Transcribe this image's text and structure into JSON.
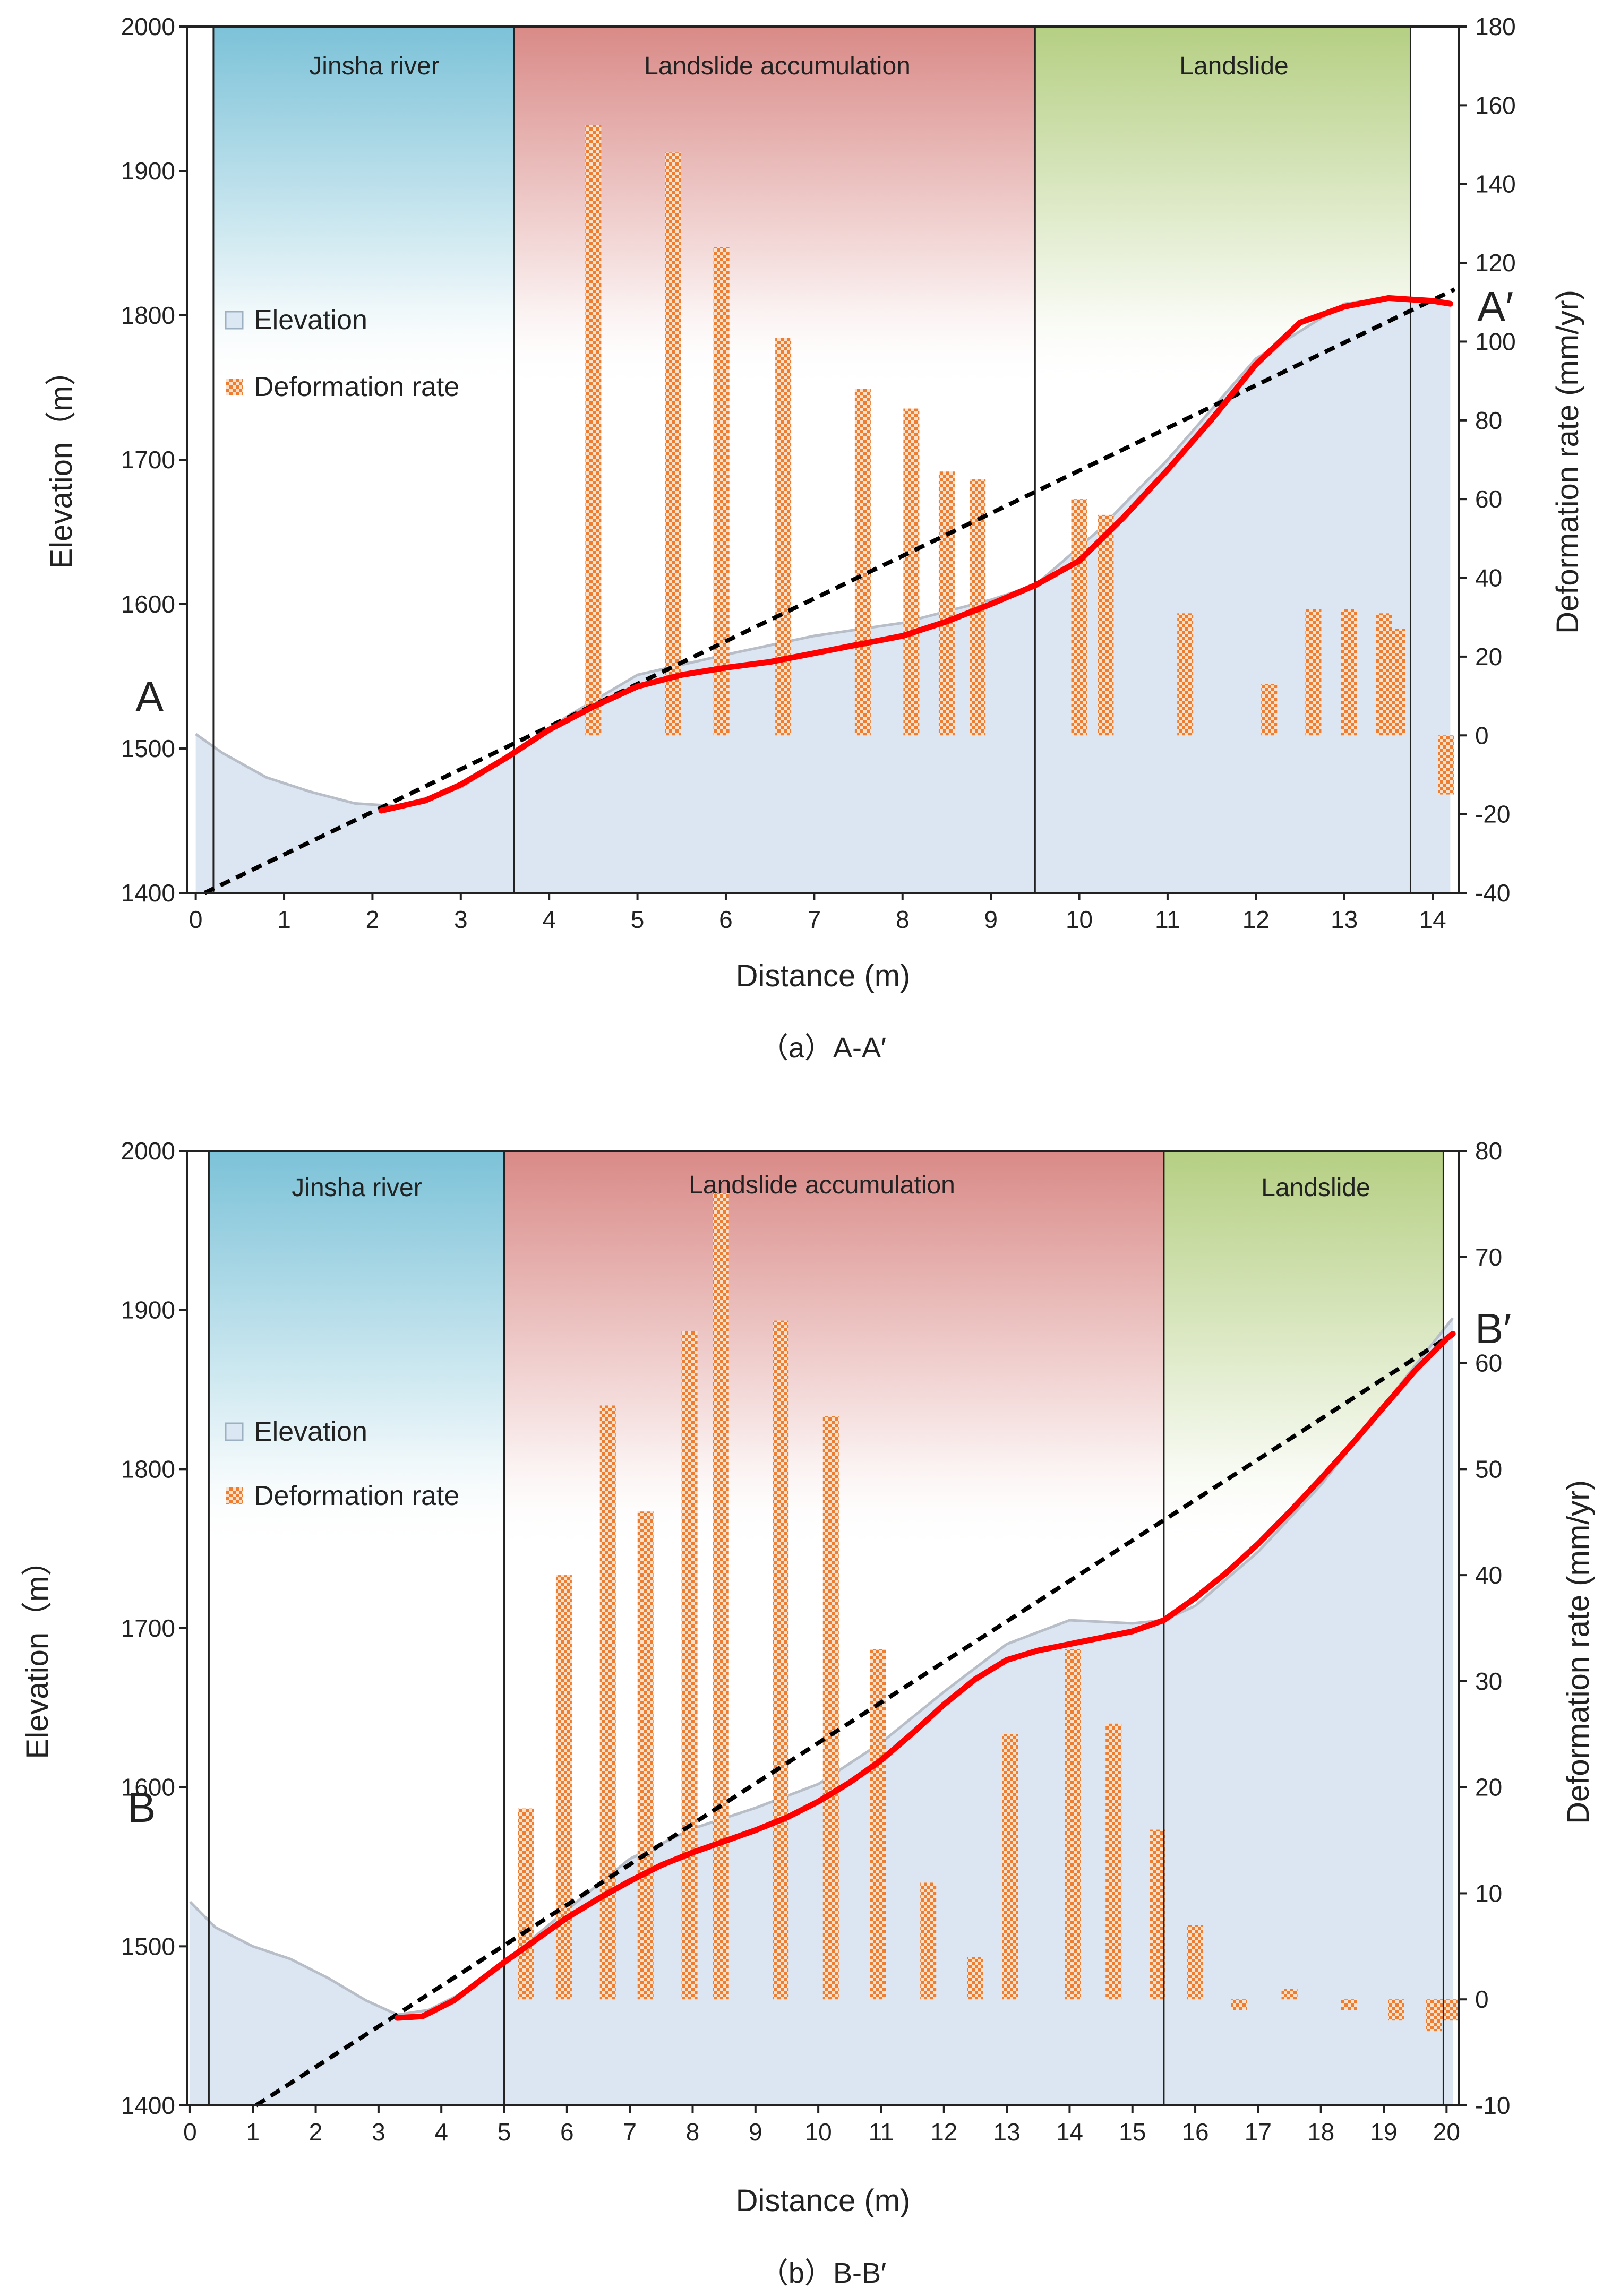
{
  "chart_data": [
    {
      "type": "profile",
      "caption": "（a）A-A′",
      "xlabel": "Distance (m)",
      "ylabel_left": "Elevation（m）",
      "ylabel_right": "Deformation rate (mm/yr)",
      "xlim": [
        -0.1,
        14.3
      ],
      "ylim_left": [
        1400,
        2000
      ],
      "ylim_right": [
        -40,
        180
      ],
      "x_ticks": [
        "0",
        "1",
        "2",
        "3",
        "4",
        "5",
        "6",
        "7",
        "8",
        "9",
        "10",
        "11",
        "12",
        "13",
        "14"
      ],
      "y_left_ticks": [
        "1400",
        "1500",
        "1600",
        "1700",
        "1800",
        "1900",
        "2000"
      ],
      "y_right_ticks": [
        "-40",
        "-20",
        "0",
        "20",
        "40",
        "60",
        "80",
        "100",
        "120",
        "140",
        "160",
        "180"
      ],
      "start_label": "A",
      "end_label": "A′",
      "zones": [
        {
          "name": "Jinsha river",
          "x0": 0.2,
          "x1": 3.6,
          "color": "#7cc2d8"
        },
        {
          "name": "Landslide accumulation",
          "x0": 3.6,
          "x1": 9.5,
          "color": "#d98a87"
        },
        {
          "name": "Landslide",
          "x0": 9.5,
          "x1": 13.75,
          "color": "#b5cf83"
        }
      ],
      "legend": [
        {
          "label": "Elevation",
          "kind": "area"
        },
        {
          "label": "Deformation rate",
          "kind": "bar"
        }
      ],
      "elevation": {
        "x": [
          0,
          0.3,
          0.8,
          1.3,
          1.8,
          2.3,
          3.0,
          3.6,
          4.2,
          5.0,
          6.0,
          7.0,
          8.0,
          9.0,
          9.5,
          10.2,
          11.0,
          12.0,
          13.0,
          13.5,
          14.0,
          14.2
        ],
        "y": [
          1510,
          1497,
          1480,
          1470,
          1462,
          1460,
          1473,
          1496,
          1522,
          1551,
          1565,
          1578,
          1587,
          1603,
          1613,
          1650,
          1700,
          1770,
          1808,
          1812,
          1810,
          1808
        ]
      },
      "trend_curve": {
        "x": [
          2.1,
          2.6,
          3.0,
          3.5,
          4.0,
          4.5,
          5.0,
          5.5,
          6.0,
          6.5,
          7.0,
          7.5,
          8.0,
          8.5,
          9.0,
          9.5,
          10.0,
          10.5,
          11.0,
          11.5,
          12.0,
          12.5,
          13.0,
          13.5,
          14.0,
          14.2
        ],
        "y": [
          1457,
          1464,
          1475,
          1493,
          1513,
          1529,
          1543,
          1551,
          1556,
          1560,
          1566,
          1572,
          1578,
          1588,
          1600,
          1613,
          1630,
          1660,
          1693,
          1728,
          1766,
          1795,
          1806,
          1812,
          1810,
          1808
        ]
      },
      "reference_line": {
        "x": [
          0.1,
          14.25
        ],
        "y": [
          1400,
          1818
        ]
      },
      "deformation_rate": {
        "x": [
          4.5,
          5.4,
          5.95,
          6.65,
          7.55,
          8.1,
          8.5,
          8.85,
          10.0,
          10.3,
          11.2,
          12.15,
          12.65,
          13.05,
          13.45,
          13.6,
          14.15
        ],
        "values": [
          155,
          148,
          124,
          101,
          88,
          83,
          67,
          65,
          60,
          56,
          31,
          13,
          32,
          32,
          31,
          27,
          -15
        ]
      }
    },
    {
      "type": "profile",
      "caption": "（b）B-B′",
      "xlabel": "Distance (m)",
      "ylabel_left": "Elevation（m）",
      "ylabel_right": "Deformation rate (mm/yr)",
      "xlim": [
        -0.05,
        20.2
      ],
      "ylim_left": [
        1400,
        2000
      ],
      "ylim_right": [
        -10,
        80
      ],
      "x_ticks": [
        "0",
        "1",
        "2",
        "3",
        "4",
        "5",
        "6",
        "7",
        "8",
        "9",
        "10",
        "11",
        "12",
        "13",
        "14",
        "15",
        "16",
        "17",
        "18",
        "19",
        "20"
      ],
      "y_left_ticks": [
        "1400",
        "1500",
        "1600",
        "1700",
        "1800",
        "1900",
        "2000"
      ],
      "y_right_ticks": [
        "-10",
        "0",
        "10",
        "20",
        "30",
        "40",
        "50",
        "60",
        "70",
        "80"
      ],
      "start_label": "B",
      "end_label": "B′",
      "zones": [
        {
          "name": "Jinsha river",
          "x0": 0.3,
          "x1": 5.0,
          "color": "#7cc2d8"
        },
        {
          "name": "Landslide accumulation",
          "x0": 5.0,
          "x1": 15.5,
          "color": "#d98a87"
        },
        {
          "name": "Landslide",
          "x0": 15.5,
          "x1": 19.95,
          "color": "#b5cf83"
        }
      ],
      "legend": [
        {
          "label": "Elevation",
          "kind": "area"
        },
        {
          "label": "Deformation rate",
          "kind": "bar"
        }
      ],
      "elevation": {
        "x": [
          0,
          0.4,
          1.0,
          1.6,
          2.2,
          2.8,
          3.3,
          3.8,
          4.3,
          5.0,
          6.0,
          7.0,
          8.0,
          9.0,
          10.0,
          11.0,
          12.0,
          13.0,
          14.0,
          15.0,
          15.5,
          16.0,
          17.0,
          18.0,
          19.0,
          20.0,
          20.1
        ],
        "y": [
          1528,
          1512,
          1500,
          1492,
          1480,
          1466,
          1457,
          1460,
          1470,
          1490,
          1523,
          1555,
          1574,
          1587,
          1602,
          1628,
          1660,
          1690,
          1705,
          1703,
          1705,
          1714,
          1748,
          1790,
          1840,
          1890,
          1895
        ]
      },
      "trend_curve": {
        "x": [
          3.3,
          3.7,
          4.2,
          4.6,
          5.0,
          5.5,
          6.0,
          6.5,
          7.0,
          7.5,
          8.0,
          8.5,
          9.0,
          9.5,
          10.0,
          10.5,
          11.0,
          11.5,
          12.0,
          12.5,
          13.0,
          13.5,
          14.0,
          14.5,
          15.0,
          15.5,
          16.0,
          16.5,
          17.0,
          17.5,
          18.0,
          18.5,
          19.0,
          19.5,
          20.0,
          20.1
        ],
        "y": [
          1455,
          1456,
          1466,
          1478,
          1490,
          1504,
          1518,
          1530,
          1541,
          1551,
          1559,
          1566,
          1573,
          1581,
          1591,
          1603,
          1617,
          1634,
          1652,
          1668,
          1680,
          1686,
          1690,
          1694,
          1698,
          1705,
          1719,
          1735,
          1753,
          1773,
          1794,
          1816,
          1839,
          1862,
          1882,
          1885
        ]
      },
      "reference_line": {
        "x": [
          1.05,
          20.1
        ],
        "y": [
          1400,
          1885
        ]
      },
      "deformation_rate": {
        "x": [
          5.35,
          5.95,
          6.65,
          7.25,
          7.95,
          8.45,
          9.4,
          10.2,
          10.95,
          11.75,
          12.5,
          13.05,
          14.05,
          14.7,
          15.4,
          16.0,
          16.7,
          17.5,
          18.45,
          19.2,
          19.8,
          20.05
        ],
        "values": [
          18,
          40,
          56,
          46,
          63,
          76,
          64,
          55,
          33,
          11,
          4,
          25,
          33,
          26,
          16,
          7,
          -1,
          1,
          -1,
          -2,
          -3,
          -2
        ]
      }
    }
  ]
}
